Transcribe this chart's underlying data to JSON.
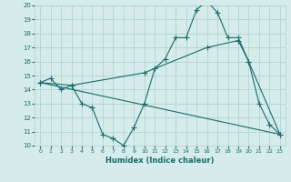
{
  "title": "",
  "xlabel": "Humidex (Indice chaleur)",
  "xlim": [
    -0.5,
    23.5
  ],
  "ylim": [
    10,
    20
  ],
  "yticks": [
    10,
    11,
    12,
    13,
    14,
    15,
    16,
    17,
    18,
    19,
    20
  ],
  "xticks": [
    0,
    1,
    2,
    3,
    4,
    5,
    6,
    7,
    8,
    9,
    10,
    11,
    12,
    13,
    14,
    15,
    16,
    17,
    18,
    19,
    20,
    21,
    22,
    23
  ],
  "background_color": "#d5ecea",
  "grid_color": "#aacfcf",
  "line_color": "#1a6b6b",
  "line1_x": [
    0,
    1,
    2,
    3,
    4,
    5,
    6,
    7,
    8,
    9,
    10,
    11,
    12,
    13,
    14,
    15,
    16,
    17,
    18,
    19,
    20,
    21,
    22,
    23
  ],
  "line1_y": [
    14.5,
    14.8,
    14.0,
    14.3,
    13.0,
    12.7,
    10.8,
    10.5,
    10.0,
    11.3,
    13.0,
    15.5,
    16.2,
    17.7,
    17.7,
    19.7,
    20.3,
    19.5,
    17.7,
    17.7,
    16.0,
    13.0,
    11.5,
    10.8
  ],
  "line2_x": [
    0,
    23
  ],
  "line2_y": [
    14.5,
    10.8
  ],
  "line3_x": [
    0,
    3,
    10,
    16,
    19,
    20,
    23
  ],
  "line3_y": [
    14.5,
    14.3,
    15.2,
    17.0,
    17.5,
    16.0,
    10.8
  ],
  "figsize": [
    3.2,
    2.0
  ],
  "dpi": 100
}
